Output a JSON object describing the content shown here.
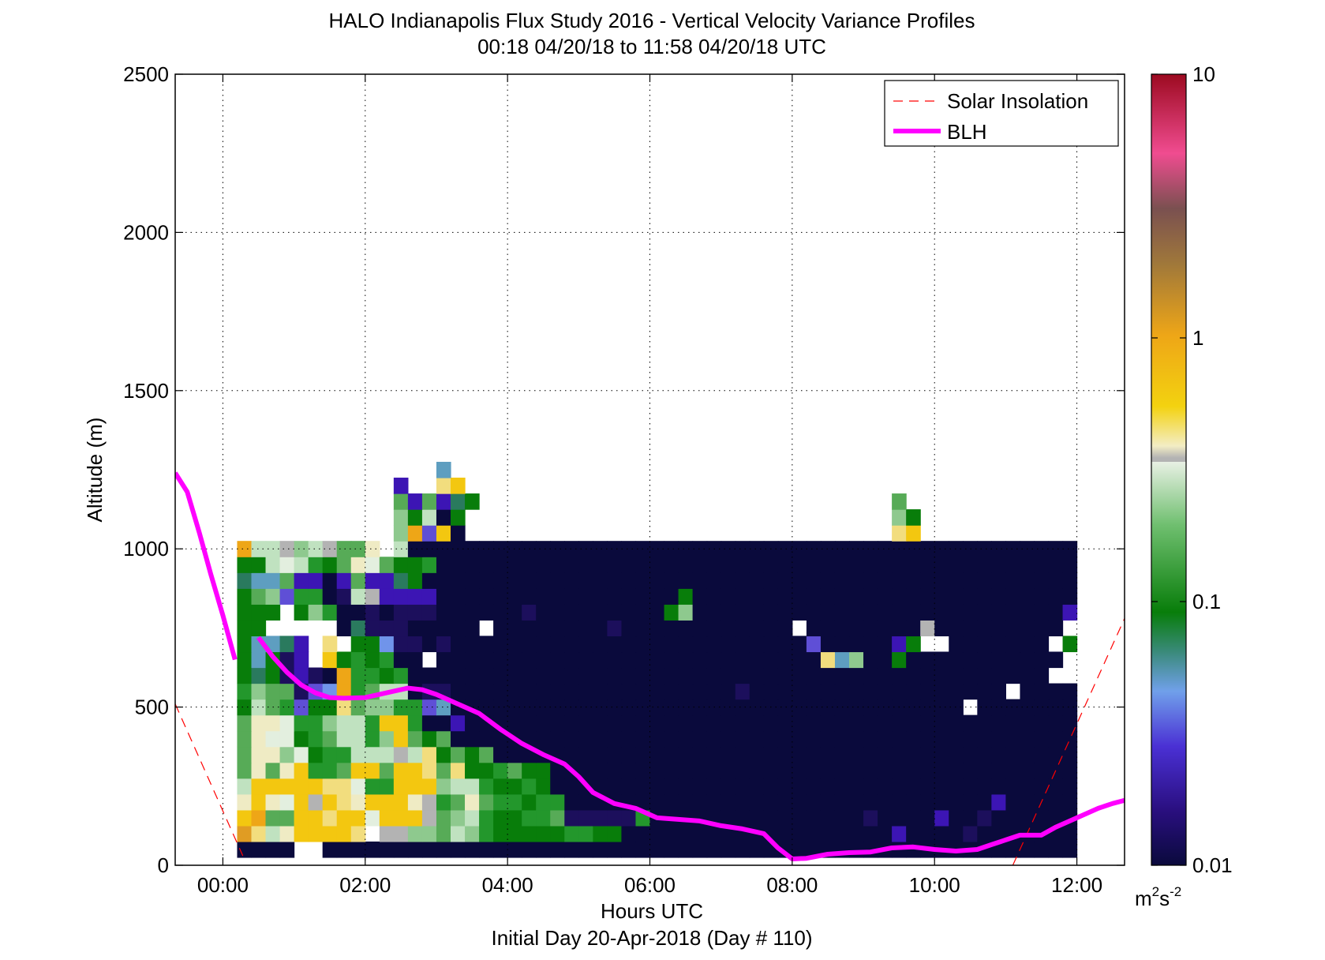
{
  "chart_data": {
    "type": "heatmap",
    "title_line1": "HALO Indianapolis Flux Study 2016 - Vertical Velocity Variance Profiles",
    "title_line2": "00:18 04/20/18 to 11:58 04/20/18  UTC",
    "xlabel": "Hours UTC",
    "xlabel2": "Initial Day 20-Apr-2018 (Day # 110)",
    "ylabel": "Altitude (m)",
    "xlim": [
      -0.67,
      12.67
    ],
    "ylim": [
      0,
      2500
    ],
    "x_ticks": [
      0,
      2,
      4,
      6,
      8,
      10,
      12
    ],
    "x_tick_labels": [
      "00:00",
      "02:00",
      "04:00",
      "06:00",
      "08:00",
      "10:00",
      "12:00"
    ],
    "y_ticks": [
      0,
      500,
      1000,
      1500,
      2000,
      2500
    ],
    "y_tick_labels": [
      "0",
      "500",
      "1000",
      "1500",
      "2000",
      "2500"
    ],
    "grid": true,
    "legend_position": "top-right",
    "legend": [
      {
        "label": "Solar Insolation",
        "color": "#ff0000",
        "style": "dashed"
      },
      {
        "label": "BLH",
        "color": "#ff00ff",
        "style": "solid"
      }
    ],
    "colorbar": {
      "scale": "log",
      "range": [
        0.01,
        10
      ],
      "tick_labels": [
        "0.01",
        "0.1",
        "1",
        "10"
      ],
      "unit_base": "m",
      "unit_sup1": "2",
      "unit_mid": "s",
      "unit_sup2": "-2"
    },
    "heatmap": {
      "x_start": 0.3,
      "x_step": 0.2,
      "y_start": 50,
      "y_step": 50,
      "colors": {
        ".": null,
        "N": "#0a0a3c",
        "n": "#1c0f5c",
        "P": "#3c15b4",
        "p": "#5f4fd6",
        "L": "#7094ea",
        "b": "#5e9ec0",
        "T": "#2a7a5e",
        "G": "#087d0a",
        "g": "#23972c",
        "m": "#57ab57",
        "l": "#8ec98e",
        "h": "#c0e2c0",
        "w": "#e3efdf",
        "c": "#efebc4",
        "e": "#f2dd7e",
        "Y": "#f3c710",
        "O": "#eea617",
        "o": "#e09c23",
        "s": "#b3b3b3"
      },
      "rows": [
        "NNNN..NNNNNNNNNNNNNNNNNNNNNNNNNNNNNNNNNNNNNNNNNNNNNNNNNNNNN",
        "oehcYYYYeEssllmhlgGGGGGggGGNNNNNNNNNNNNNNNNNNNPNNNNnNNNNNNN",
        "YOmmYYeYYwYYYsmlhgGGggmnnnnngNNNNNNNNNNNNNNNnNNNNPNNnNNNNNN",
        "cYcwYsYecYYYcsgmcmggGggNNNNNNNNNNNNNNNNNNNNNNNNNNNNNNPNNNNN",
        "hYYYYYeewggYYYlhhgGGgGNNNNNNNNNNNNNNNNNNNNNNNNNNNNNNNNNNNNN",
        "mcmcYggmYYmYYemeGGgmGGNNNNNNNNNNNNNNNNNNNNNNNNNNNNNNNNNNNNN",
        "mcclwGgghhhsheGmGmNNNNNNNNNNNNNNNNNNNNNNNNNNNNNNNNNNNNNNNNN",
        "mcwwGgmhhglYmGmNNNNNNNNNNNNNNNNNNNNNNNNNNNNNNNNNNNNNNNNNNNN",
        "mccwgglhhgYYgNNPNNNNNNNNNNNNNNNNNNNNNNNNNNNNNNNNNNNNNNNNNNN",
        "GhmgpGGemllggpbNNNNNNNNNNNNNNNNNNNNNNNNNNNNNNNNNNNN.NNNNNNN",
        "glmmnpLOgmhhNnnNNNNNNNNNNNNNNNNNNNNnNNNNNNNNNNNNNNNNNN.NNNN",
        "GTGnPnNOggGgNNNNNNNNNNNNNNNNNNNNNNNNNNNNNNNNNNNNNNNNNNNNN..",
        "GbGnP.YGgGgNN.NNNNNNNNNNNNNNNNNNNNNNNNNNNeblNNGNNNNNNNNNNN.",
        "GbbTP.e.GGLnnNnNNNNNNNNNNNNNNNNNNNNNNNNNpNNNNNPG..NNNNNNN.G",
        "GG.....NTnnnNNNNN.NNNNNNNNnNNNNNNNNNNNN.NNNNNNNNsNNNNNNNNN.",
        "GGG.GlgNNnNnnnNNNNNNnNNNNNNNNNGlNNNNNNNNNNNNNNNNNNNNNNNNNNP",
        "GmlpggNnhsPPPPNNNNNNNNNNNNNNNNNGNNNNNNNNNNNNNNNNNNNNNNNNNNN",
        "TbbmPPNPmPPTGNNNNNNNNNNNNNNNNNNNNNNNNNNNNNNNNNNNNNNNNNNNNNN",
        "GGhwhgGmcwmGGgNNNNNNNNNNNNNNNNNNNNNNNNNNNNNNNNNNNNNNNNNNNNN",
        "Ohhslhsmmc.hNNNNNNNNNNNNNNNNNNNNNNNNNNNNNNNNNNNNNNNNNNNNNNN",
        "...........lOpYN..............................eY..........",
        "...........lGhNG..............................lG..........",
        "...........mPmPTG.............................m...........",
        "...........P..eY..........................................",
        "..............b..........................................."
      ]
    },
    "blh": {
      "x": [
        -0.67,
        -0.5,
        -0.33,
        -0.17,
        0.0,
        0.17,
        0.5,
        0.7,
        0.9,
        1.1,
        1.3,
        1.5,
        1.7,
        2.0,
        2.3,
        2.6,
        2.8,
        3.0,
        3.3,
        3.6,
        3.9,
        4.2,
        4.5,
        4.8,
        5.0,
        5.2,
        5.5,
        5.8,
        6.1,
        6.4,
        6.7,
        7.0,
        7.3,
        7.6,
        7.8,
        8.0,
        8.2,
        8.5,
        8.8,
        9.1,
        9.4,
        9.7,
        10.0,
        10.3,
        10.6,
        10.8,
        11.0,
        11.2,
        11.5,
        11.7,
        12.0,
        12.3,
        12.5,
        12.67
      ],
      "y": [
        1240,
        1180,
        1050,
        920,
        790,
        650,
        720,
        660,
        610,
        570,
        545,
        530,
        528,
        530,
        545,
        560,
        555,
        540,
        510,
        480,
        430,
        385,
        350,
        320,
        280,
        230,
        195,
        180,
        150,
        145,
        140,
        125,
        115,
        100,
        55,
        20,
        22,
        35,
        40,
        42,
        55,
        58,
        50,
        45,
        50,
        65,
        80,
        95,
        95,
        120,
        150,
        180,
        195,
        205
      ]
    },
    "solar_insolation": [
      {
        "x": [
          -0.67,
          0.28
        ],
        "y": [
          510,
          30
        ]
      },
      {
        "x": [
          11.1,
          12.67
        ],
        "y": [
          0,
          780
        ]
      }
    ]
  }
}
